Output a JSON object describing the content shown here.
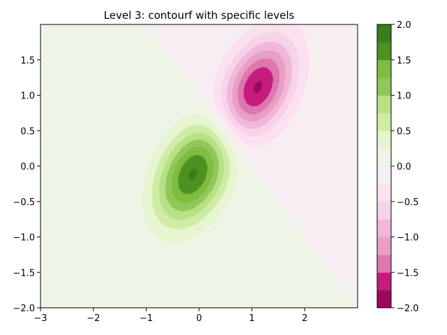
{
  "chart_data": {
    "type": "contourf",
    "title": "Level 3: contourf with specific levels",
    "xlabel": "",
    "ylabel": "",
    "xlim": [
      -3,
      3
    ],
    "ylim": [
      -2,
      2
    ],
    "x_ticks": [
      -3,
      -2,
      -1,
      0,
      1,
      2
    ],
    "x_tick_labels": [
      "−3",
      "−2",
      "−1",
      "0",
      "1",
      "2"
    ],
    "y_ticks": [
      -2.0,
      -1.5,
      -1.0,
      -0.5,
      0.0,
      0.5,
      1.0,
      1.5
    ],
    "y_tick_labels": [
      "−2.0",
      "−1.5",
      "−1.0",
      "−0.5",
      "0.0",
      "0.5",
      "1.0",
      "1.5"
    ],
    "grid": false,
    "colormap": "PiYG",
    "levels": [
      -2.0,
      -1.75,
      -1.5,
      -1.25,
      -1.0,
      -0.75,
      -0.5,
      -0.25,
      0.0,
      0.25,
      0.5,
      0.75,
      1.0,
      1.25,
      1.5,
      1.75,
      2.0
    ],
    "level_colors": [
      "#9b0a5a",
      "#c51b7d",
      "#de77ae",
      "#e89fc6",
      "#f1b6da",
      "#f7d3e8",
      "#fde0ef",
      "#f7eef3",
      "#eef5e6",
      "#e6f5d0",
      "#cfeca5",
      "#b8e186",
      "#8fc75a",
      "#7fbc41",
      "#4d9221",
      "#3a7d1a",
      "#276419"
    ],
    "features": [
      {
        "kind": "peak",
        "center": [
          -0.1,
          -0.1
        ],
        "value": 1.8
      },
      {
        "kind": "trough",
        "center": [
          1.1,
          1.1
        ],
        "value": -1.8
      }
    ],
    "colorbar": {
      "ticks": [
        2.0,
        1.5,
        1.0,
        0.5,
        0.0,
        -0.5,
        -1.0,
        -1.5,
        -2.0
      ],
      "tick_labels": [
        "2.0",
        "1.5",
        "1.0",
        "0.5",
        "0.0",
        "−0.5",
        "−1.0",
        "−1.5",
        "−2.0"
      ]
    }
  }
}
